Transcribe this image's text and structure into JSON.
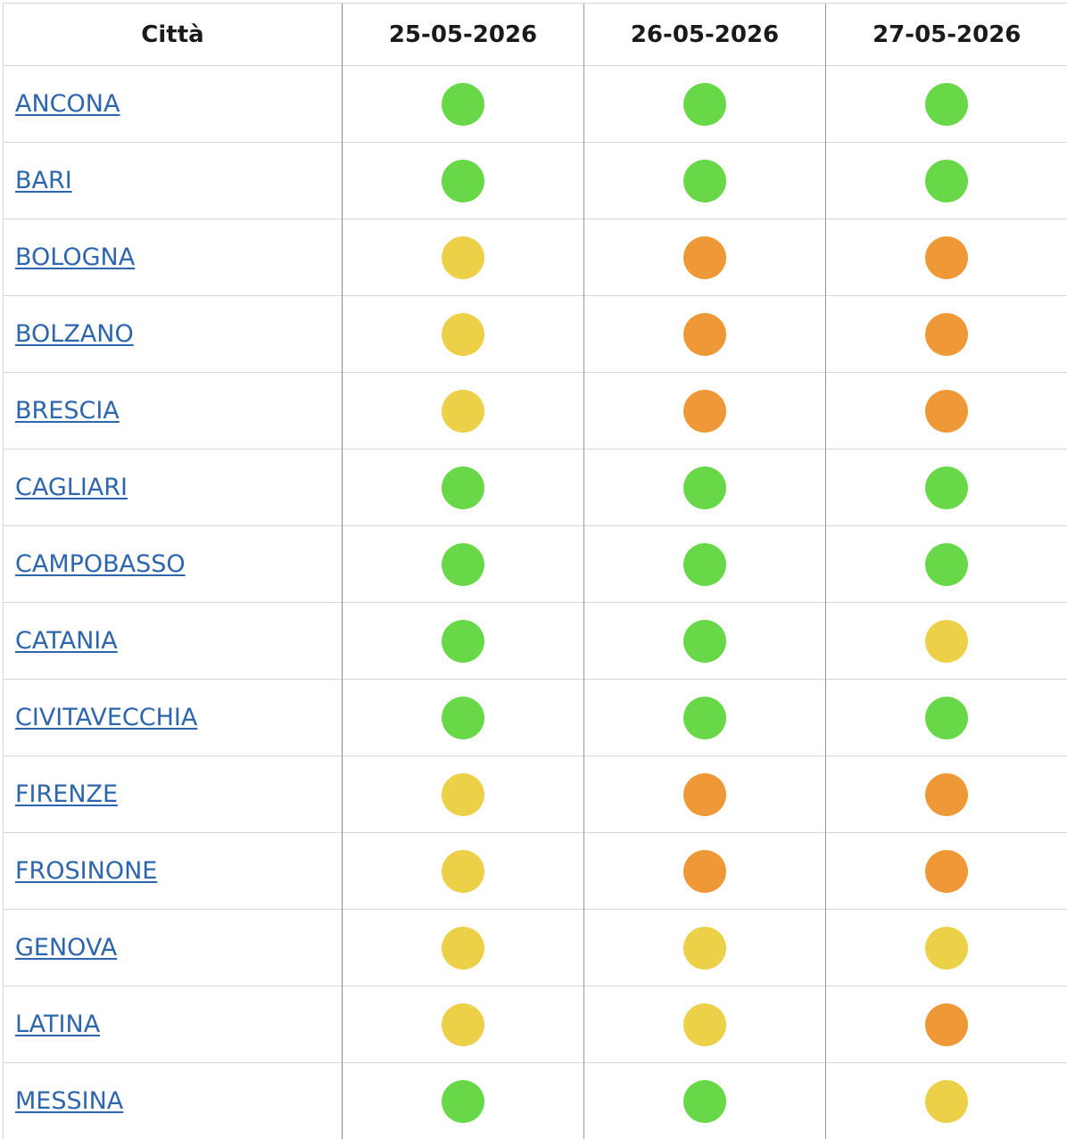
{
  "table": {
    "header_city": "Città",
    "dates": [
      "25-05-2026",
      "26-05-2026",
      "27-05-2026"
    ]
  },
  "colors": {
    "green": "#68d848",
    "yellow": "#ecd048",
    "orange": "#ee9838"
  },
  "rows": [
    {
      "city": "ANCONA",
      "levels": [
        "green",
        "green",
        "green"
      ]
    },
    {
      "city": "BARI",
      "levels": [
        "green",
        "green",
        "green"
      ]
    },
    {
      "city": "BOLOGNA",
      "levels": [
        "yellow",
        "orange",
        "orange"
      ]
    },
    {
      "city": "BOLZANO",
      "levels": [
        "yellow",
        "orange",
        "orange"
      ]
    },
    {
      "city": "BRESCIA",
      "levels": [
        "yellow",
        "orange",
        "orange"
      ]
    },
    {
      "city": "CAGLIARI",
      "levels": [
        "green",
        "green",
        "green"
      ]
    },
    {
      "city": "CAMPOBASSO",
      "levels": [
        "green",
        "green",
        "green"
      ]
    },
    {
      "city": "CATANIA",
      "levels": [
        "green",
        "green",
        "yellow"
      ]
    },
    {
      "city": "CIVITAVECCHIA",
      "levels": [
        "green",
        "green",
        "green"
      ]
    },
    {
      "city": "FIRENZE",
      "levels": [
        "yellow",
        "orange",
        "orange"
      ]
    },
    {
      "city": "FROSINONE",
      "levels": [
        "yellow",
        "orange",
        "orange"
      ]
    },
    {
      "city": "GENOVA",
      "levels": [
        "yellow",
        "yellow",
        "yellow"
      ]
    },
    {
      "city": "LATINA",
      "levels": [
        "yellow",
        "yellow",
        "orange"
      ]
    },
    {
      "city": "MESSINA",
      "levels": [
        "green",
        "green",
        "yellow"
      ]
    }
  ]
}
